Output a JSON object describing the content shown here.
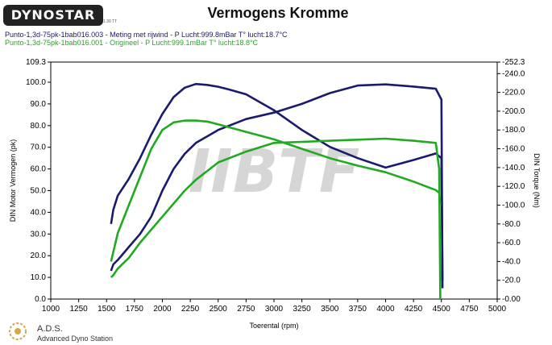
{
  "header": {
    "logo_text": "DYNOSTAR",
    "logo_sub": "1.30 TT",
    "title": "Vermogens Kromme"
  },
  "runs": [
    {
      "label": "Punto-1,3d-75pk-1bab016.003 - Meting met rijwind  - P Lucht:999.8mBar T° lucht:18.7°C",
      "color": "#1a1a6e"
    },
    {
      "label": "Punto-1,3d-75pk-1bab016.001 - Origineel  - P Lucht:999.1mBar T° lucht:18.8°C",
      "color": "#1faa1f"
    }
  ],
  "watermark": "IIBTF",
  "footer": {
    "ads_title": "A.D.S.",
    "ads_subtitle": "Advanced Dyno Station"
  },
  "chart_data": {
    "type": "line",
    "xlabel": "Toerental (rpm)",
    "ylabel_left": "DIN Motor Vermogen (pk)",
    "ylabel_right": "DIN Torque (Nm)",
    "xlim": [
      1000,
      5000
    ],
    "ylim_left": [
      0,
      109.3
    ],
    "ylim_right": [
      0,
      252.3
    ],
    "x_ticks": [
      "1000",
      "1250",
      "1500",
      "1750",
      "2000",
      "2250",
      "2500",
      "2750",
      "3000",
      "3250",
      "3500",
      "3750",
      "4000",
      "4250",
      "4500",
      "4750",
      "5000"
    ],
    "y_left_ticks": [
      "0.0",
      "10.0",
      "20.0",
      "30.0",
      "40.0",
      "50.0",
      "60.0",
      "70.0",
      "80.0",
      "90.0",
      "100.0",
      "109.3"
    ],
    "y_right_ticks": [
      "0.00",
      "20.0",
      "40.0",
      "60.0",
      "80.0",
      "100.0",
      "120.0",
      "140.0",
      "160.0",
      "180.0",
      "200.0",
      "220.0",
      "240.0",
      "252.3"
    ],
    "grid": false,
    "series": [
      {
        "name": "Punto-1,3d-75pk-1bab016.003 - Meting met rijwind  - P Lucht:999.8mBar T° lucht:18.7°C",
        "color": "#1a1a6e",
        "axis": "right",
        "x": [
          1540,
          1560,
          1600,
          1700,
          1800,
          1900,
          2000,
          2100,
          2200,
          2300,
          2400,
          2500,
          2600,
          2750,
          3000,
          3250,
          3500,
          3750,
          4000,
          4250,
          4450,
          4500,
          4510
        ],
        "y": [
          80,
          95,
          110,
          128,
          150,
          175,
          197,
          215,
          225,
          229,
          228,
          226,
          223,
          218,
          201,
          180,
          162,
          150,
          140,
          148,
          155,
          150,
          20
        ]
      },
      {
        "name": "Punto-1,3d-75pk-1bab016.003 - Meting met rijwind  - P Lucht:999.8mBar T° lucht:18.7°C",
        "color": "#1a1a6e",
        "axis": "left",
        "x": [
          1540,
          1560,
          1600,
          1700,
          1800,
          1900,
          2000,
          2100,
          2200,
          2300,
          2500,
          2750,
          3000,
          3250,
          3500,
          3750,
          4000,
          4250,
          4450,
          4500,
          4510
        ],
        "y": [
          13,
          16,
          18,
          24,
          30,
          38,
          50,
          60,
          67,
          72,
          78,
          83,
          86,
          90,
          95,
          98.5,
          99,
          98,
          97,
          92,
          5
        ]
      },
      {
        "name": "Punto-1,3d-75pk-1bab016.001 - Origineel  - P Lucht:999.1mBar T° lucht:18.8°C",
        "color": "#1faa1f",
        "axis": "right",
        "x": [
          1540,
          1560,
          1600,
          1700,
          1800,
          1900,
          2000,
          2100,
          2200,
          2300,
          2400,
          2500,
          2750,
          3000,
          3250,
          3500,
          3750,
          4000,
          4250,
          4450,
          4480,
          4490
        ],
        "y": [
          40,
          50,
          70,
          100,
          130,
          160,
          180,
          188,
          190,
          190,
          189,
          186,
          178,
          170,
          160,
          150,
          142,
          135,
          125,
          116,
          113,
          100
        ]
      },
      {
        "name": "Punto-1,3d-75pk-1bab016.001 - Origineel  - P Lucht:999.1mBar T° lucht:18.8°C",
        "color": "#1faa1f",
        "axis": "left",
        "x": [
          1540,
          1560,
          1600,
          1700,
          1800,
          1900,
          2000,
          2100,
          2200,
          2300,
          2500,
          2750,
          3000,
          3250,
          3500,
          3750,
          4000,
          4250,
          4450,
          4480,
          4490
        ],
        "y": [
          10,
          11,
          14,
          19,
          26,
          32,
          38,
          44,
          50,
          55,
          63,
          68,
          72,
          72.5,
          73,
          73.5,
          74,
          73,
          72,
          60,
          0
        ]
      }
    ]
  }
}
